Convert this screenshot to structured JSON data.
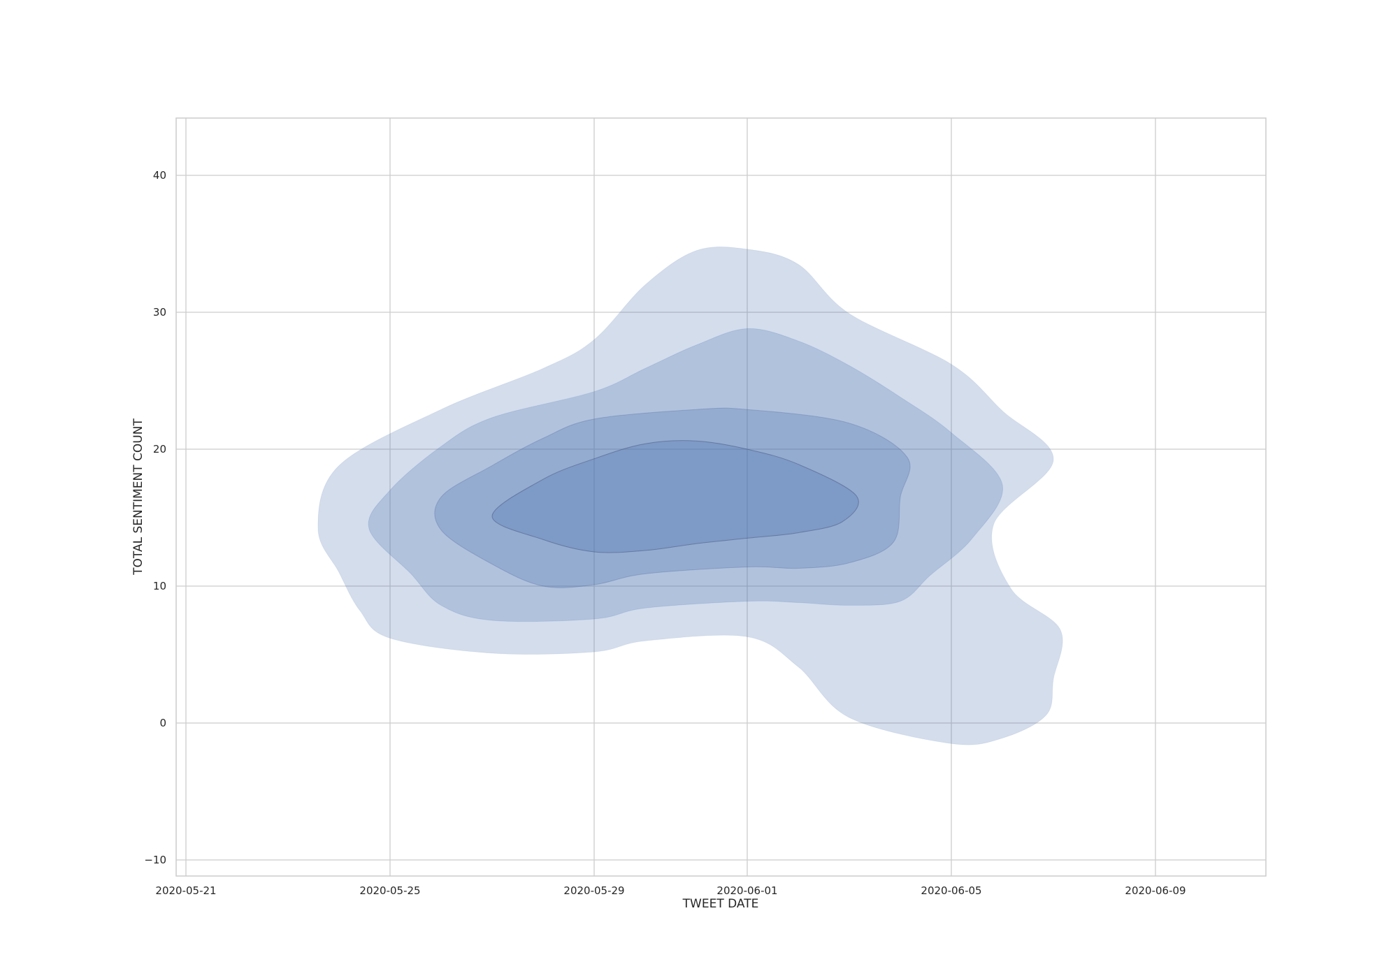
{
  "chart_data": {
    "type": "kde_contour",
    "title": "",
    "xlabel": "TWEET DATE",
    "ylabel": "TOTAL SENTIMENT COUNT",
    "x_ticks": [
      "2020-05-21",
      "2020-05-25",
      "2020-05-29",
      "2020-06-01",
      "2020-06-05",
      "2020-06-09"
    ],
    "y_ticks": [
      -10,
      0,
      10,
      20,
      30,
      40
    ],
    "xlim": [
      "2020-05-20",
      "2020-06-11"
    ],
    "ylim": [
      -11,
      44
    ],
    "grid": true,
    "fill_color": "#4c72b0",
    "levels": [
      {
        "level": 1,
        "outline": [
          [
            "2020-05-24",
            14.2
          ],
          [
            "2020-05-24",
            11
          ],
          [
            "2020-05-24",
            8.2
          ],
          [
            "2020-05-25",
            6.2
          ],
          [
            "2020-05-27",
            5.1
          ],
          [
            "2020-05-29",
            5.2
          ],
          [
            "2020-05-30",
            6.0
          ],
          [
            "2020-06-01",
            6.3
          ],
          [
            "2020-06-02",
            4.1
          ],
          [
            "2020-06-03",
            0.4
          ],
          [
            "2020-06-05",
            -1.5
          ],
          [
            "2020-06-06",
            -1.1
          ],
          [
            "2020-06-07",
            0.6
          ],
          [
            "2020-06-07",
            3.2
          ],
          [
            "2020-06-07",
            6.8
          ],
          [
            "2020-06-06",
            9.8
          ],
          [
            "2020-06-06",
            14.5
          ],
          [
            "2020-06-07",
            19.2
          ],
          [
            "2020-06-06",
            22.8
          ],
          [
            "2020-06-05",
            26.2
          ],
          [
            "2020-06-03",
            29.9
          ],
          [
            "2020-06-02",
            33.5
          ],
          [
            "2020-06-01",
            34.6
          ],
          [
            "2020-05-31",
            34.5
          ],
          [
            "2020-05-30",
            32.0
          ],
          [
            "2020-05-29",
            28.0
          ],
          [
            "2020-05-28",
            25.9
          ],
          [
            "2020-05-26",
            22.9
          ],
          [
            "2020-05-24",
            18.8
          ]
        ]
      },
      {
        "level": 2,
        "outline": [
          [
            "2020-05-25",
            14.2
          ],
          [
            "2020-05-25",
            10.9
          ],
          [
            "2020-05-26",
            8.6
          ],
          [
            "2020-05-27",
            7.5
          ],
          [
            "2020-05-29",
            7.6
          ],
          [
            "2020-05-30",
            8.4
          ],
          [
            "2020-06-01",
            8.9
          ],
          [
            "2020-06-02",
            8.8
          ],
          [
            "2020-06-03",
            8.6
          ],
          [
            "2020-06-04",
            8.9
          ],
          [
            "2020-06-05",
            10.8
          ],
          [
            "2020-06-05",
            13.5
          ],
          [
            "2020-06-06",
            17.4
          ],
          [
            "2020-06-05",
            21.2
          ],
          [
            "2020-06-04",
            23.8
          ],
          [
            "2020-06-03",
            26.1
          ],
          [
            "2020-06-02",
            27.9
          ],
          [
            "2020-06-01",
            28.8
          ],
          [
            "2020-05-31",
            27.6
          ],
          [
            "2020-05-30",
            25.9
          ],
          [
            "2020-05-29",
            24.2
          ],
          [
            "2020-05-27",
            22.3
          ],
          [
            "2020-05-26",
            20.2
          ],
          [
            "2020-05-25",
            17.0
          ]
        ]
      },
      {
        "level": 3,
        "outline": [
          [
            "2020-05-26",
            14.1
          ],
          [
            "2020-05-27",
            11.6
          ],
          [
            "2020-05-28",
            10.0
          ],
          [
            "2020-05-29",
            10.1
          ],
          [
            "2020-05-30",
            10.9
          ],
          [
            "2020-06-01",
            11.4
          ],
          [
            "2020-06-02",
            11.3
          ],
          [
            "2020-06-03",
            11.7
          ],
          [
            "2020-06-04",
            13.2
          ],
          [
            "2020-06-04",
            16.5
          ],
          [
            "2020-06-04",
            19.4
          ],
          [
            "2020-06-03",
            21.9
          ],
          [
            "2020-06-01",
            22.9
          ],
          [
            "2020-05-31",
            22.9
          ],
          [
            "2020-05-29",
            22.2
          ],
          [
            "2020-05-28",
            20.8
          ],
          [
            "2020-05-27",
            18.8
          ],
          [
            "2020-05-26",
            16.5
          ]
        ]
      },
      {
        "level": 4,
        "outline": [
          [
            "2020-05-27",
            15.1
          ],
          [
            "2020-05-28",
            13.4
          ],
          [
            "2020-05-29",
            12.5
          ],
          [
            "2020-05-30",
            12.6
          ],
          [
            "2020-05-31",
            13.1
          ],
          [
            "2020-06-01",
            13.5
          ],
          [
            "2020-06-02",
            13.9
          ],
          [
            "2020-06-03",
            14.7
          ],
          [
            "2020-06-03",
            16.6
          ],
          [
            "2020-06-02",
            18.9
          ],
          [
            "2020-06-01",
            20.0
          ],
          [
            "2020-05-31",
            20.6
          ],
          [
            "2020-05-30",
            20.4
          ],
          [
            "2020-05-29",
            19.3
          ],
          [
            "2020-05-28",
            17.8
          ]
        ]
      }
    ]
  }
}
